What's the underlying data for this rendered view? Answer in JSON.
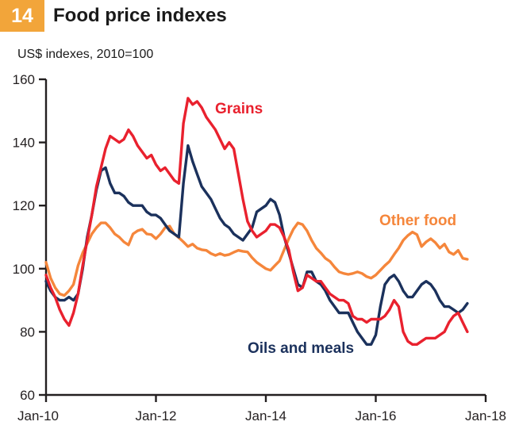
{
  "header": {
    "figure_number": "14",
    "title": "Food price indexes",
    "subtitle": "US$ indexes, 2010=100"
  },
  "colors": {
    "badge": "#f2a53a",
    "grains": "#e9212e",
    "oils_and_meals": "#1b315c",
    "other_food": "#f5863b",
    "axis": "#231f20"
  },
  "chart_data": {
    "type": "line",
    "frequency": "monthly",
    "x_start": "Jan-10",
    "x_end_of_data": "Sep-17",
    "x_tick_labels": [
      "Jan-10",
      "Jan-12",
      "Jan-14",
      "Jan-16",
      "Jan-18"
    ],
    "x_months_span": 96,
    "y_ticks": [
      60,
      80,
      100,
      120,
      140,
      160
    ],
    "ylim": [
      60,
      160
    ],
    "grid": false,
    "legend": "inline-labels",
    "series": [
      {
        "name": "Other food",
        "color": "#f5863b",
        "values": [
          102,
          97,
          94,
          92,
          91.5,
          93,
          95,
          101,
          105,
          108,
          111,
          113,
          114.5,
          114.5,
          113,
          111,
          110,
          108.5,
          107.5,
          111,
          112,
          112.5,
          111,
          110.8,
          109.5,
          111,
          113,
          113.5,
          111,
          109.8,
          108.5,
          107,
          107.8,
          106.5,
          106,
          105.8,
          104.8,
          104.2,
          104.8,
          104.2,
          104.5,
          105.2,
          105.8,
          105.5,
          105.3,
          103.5,
          102,
          101,
          100,
          99.5,
          101,
          102.5,
          106,
          109.5,
          112.5,
          114.5,
          114,
          112,
          109,
          106.5,
          105,
          103.3,
          102.3,
          100.5,
          99,
          98.5,
          98.2,
          98.5,
          99,
          98.5,
          97.5,
          97,
          98,
          99.5,
          101,
          102.3,
          104.5,
          106.5,
          109,
          110.5,
          111.6,
          110.8,
          107,
          108.5,
          109.5,
          108.3,
          106.5,
          107.8,
          105.3,
          104.5,
          105.8,
          103.3,
          103
        ]
      },
      {
        "name": "Oils and meals",
        "color": "#1b315c",
        "values": [
          96,
          93,
          91,
          90,
          90,
          91,
          90,
          92,
          100,
          110,
          117,
          125,
          131,
          132,
          127,
          124,
          124,
          123,
          121,
          120,
          120,
          120,
          118,
          117,
          117,
          116,
          114,
          112,
          111,
          110,
          127,
          139,
          134,
          130,
          126,
          124,
          122,
          119,
          116,
          114,
          113,
          111,
          110,
          109,
          111,
          113,
          118,
          119,
          120,
          122,
          121,
          117,
          110,
          105,
          100,
          95,
          94,
          99,
          99,
          96,
          95,
          93,
          90,
          88,
          86,
          86,
          86,
          83,
          80,
          78,
          76,
          76,
          79,
          88,
          95,
          97,
          98,
          96,
          93,
          91,
          91,
          93,
          95,
          96,
          95,
          93,
          90,
          88,
          88,
          87,
          86,
          87,
          89
        ]
      },
      {
        "name": "Grains",
        "color": "#e9212e",
        "values": [
          98,
          94,
          91,
          87,
          84,
          82,
          86,
          92,
          101,
          109,
          117,
          126,
          132,
          138,
          142,
          141,
          140,
          141,
          144,
          142,
          139,
          137,
          135,
          136,
          133,
          131,
          132,
          130,
          128,
          127,
          146,
          154,
          152,
          153,
          151,
          148,
          146,
          144,
          141,
          138,
          140,
          138,
          130,
          122,
          115,
          112,
          110,
          111,
          112,
          114,
          114,
          113,
          110,
          106,
          99,
          93,
          94,
          98,
          97,
          96,
          96,
          94,
          92,
          91,
          90,
          90,
          89,
          85,
          84,
          84,
          83,
          84,
          84,
          84,
          85,
          87,
          90,
          88,
          80,
          77,
          76,
          76,
          77,
          78,
          78,
          78,
          79,
          80,
          83,
          85,
          86,
          83,
          80
        ]
      }
    ]
  }
}
